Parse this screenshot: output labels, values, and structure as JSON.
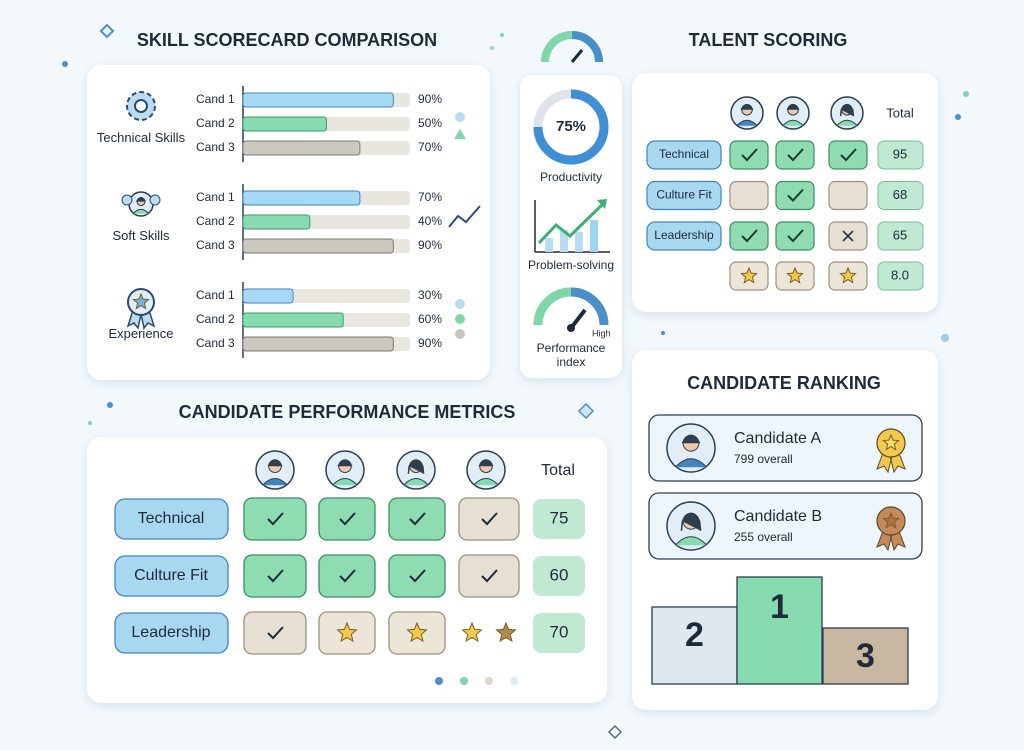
{
  "scorecard": {
    "title": "SKILL SCORECARD COMPARISON",
    "groups": [
      {
        "label": "Technical Skills",
        "rows": [
          {
            "name": "Cand 1",
            "value": 90,
            "value_label": "90%"
          },
          {
            "name": "Cand 2",
            "value": 50,
            "value_label": "50%"
          },
          {
            "name": "Cand 3",
            "value": 70,
            "value_label": "70%"
          }
        ]
      },
      {
        "label": "Soft Skills",
        "rows": [
          {
            "name": "Cand 1",
            "value": 70,
            "value_label": "70%"
          },
          {
            "name": "Cand 2",
            "value": 40,
            "value_label": "40%"
          },
          {
            "name": "Cand 3",
            "value": 90,
            "value_label": "90%"
          }
        ]
      },
      {
        "label": "Experience",
        "rows": [
          {
            "name": "Cand 1",
            "value": 30,
            "value_label": "30%"
          },
          {
            "name": "Cand 2",
            "value": 60,
            "value_label": "60%"
          },
          {
            "name": "Cand 3",
            "value": 90,
            "value_label": "90%"
          }
        ]
      }
    ]
  },
  "kpis": {
    "productivity": {
      "value": 75,
      "value_label": "75%",
      "label": "Productivity"
    },
    "problem_solving": {
      "label": "Problem-solving"
    },
    "performance": {
      "label": "Performance index",
      "level": "High"
    }
  },
  "talent": {
    "title": "TALENT SCORING",
    "total_header": "Total",
    "rows": [
      {
        "label": "Technical",
        "total": 95
      },
      {
        "label": "Culture Fit",
        "total": 68
      },
      {
        "label": "Leadership",
        "total": 65
      }
    ],
    "star_total": "8.0"
  },
  "ranking": {
    "title": "CANDIDATE RANKING",
    "candidates": [
      {
        "name": "Candidate A",
        "score": "799 overall"
      },
      {
        "name": "Candidate B",
        "score": "255 overall"
      }
    ],
    "podium": [
      2,
      1,
      3
    ]
  },
  "metrics": {
    "title": "CANDIDATE PERFORMANCE METRICS",
    "total_header": "Total",
    "rows": [
      {
        "label": "Technical",
        "total": 75
      },
      {
        "label": "Culture Fit",
        "total": 60
      },
      {
        "label": "Leadership",
        "total": 70
      }
    ]
  }
}
